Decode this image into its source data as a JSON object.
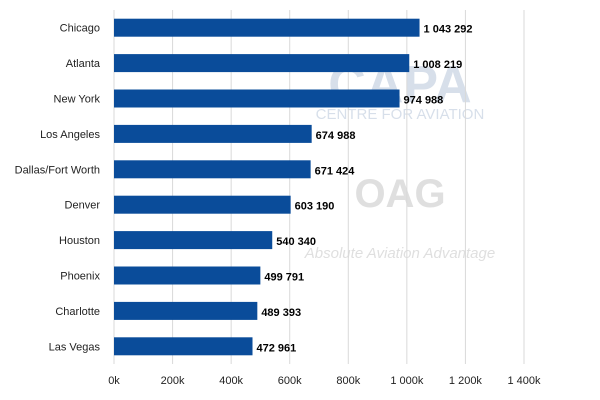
{
  "chart_data": {
    "type": "bar",
    "orientation": "horizontal",
    "categories": [
      "Chicago",
      "Atlanta",
      "New York",
      "Los Angeles",
      "Dallas/Fort Worth",
      "Denver",
      "Houston",
      "Phoenix",
      "Charlotte",
      "Las Vegas"
    ],
    "values": [
      1043292,
      1008219,
      974988,
      674988,
      671424,
      603190,
      540340,
      499791,
      489393,
      472961
    ],
    "data_labels": [
      "1 043 292",
      "1 008 219",
      "974 988",
      "674 988",
      "671 424",
      "603 190",
      "540 340",
      "499 791",
      "489 393",
      "472 961"
    ],
    "xlim": [
      0,
      1400000
    ],
    "x_ticks": [
      0,
      200000,
      400000,
      600000,
      800000,
      1000000,
      1200000,
      1400000
    ],
    "x_tick_labels": [
      "0k",
      "200k",
      "400k",
      "600k",
      "800k",
      "1 000k",
      "1 200k",
      "1 400k"
    ],
    "title": "",
    "xlabel": "",
    "ylabel": "",
    "grid": "vertical",
    "legend": "none",
    "bar_color": "#0a4c9a"
  },
  "watermarks": {
    "capa_logo": "CAPA",
    "capa_subtitle": "CENTRE FOR AVIATION",
    "oag_logo": "OAG",
    "oag_tagline": "Absolute Aviation Advantage"
  }
}
